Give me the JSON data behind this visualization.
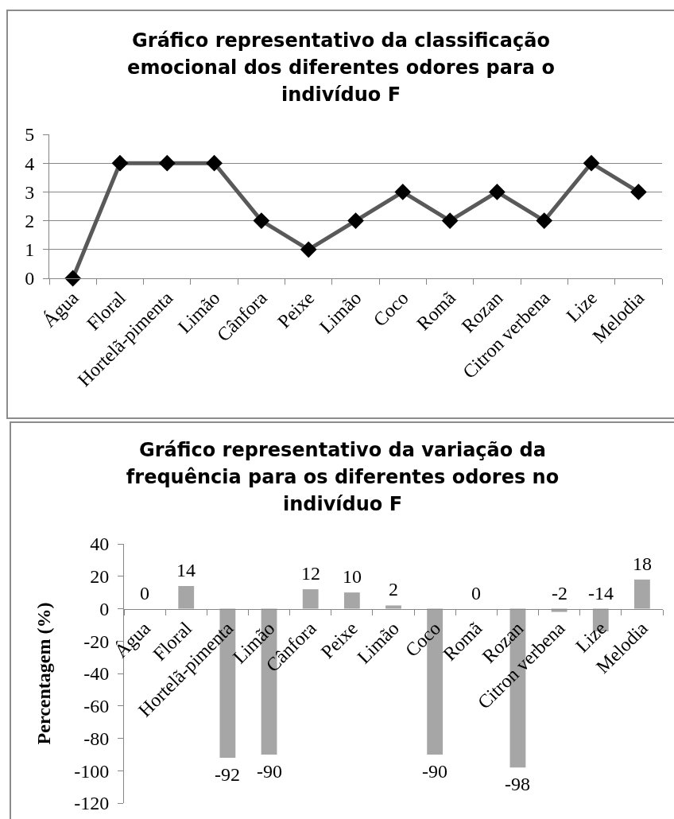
{
  "chart_data": [
    {
      "type": "line",
      "title": "Gráfico representativo da classificação emocional dos diferentes odores para o indivíduo F",
      "categories": [
        "Água",
        "Floral",
        "Hortelã-pimenta",
        "Limão",
        "Cânfora",
        "Peixe",
        "Limão",
        "Coco",
        "Romã",
        "Rozan",
        "Citron verbena",
        "Lize",
        "Melodia"
      ],
      "values": [
        0,
        4,
        4,
        4,
        2,
        1,
        2,
        3,
        2,
        3,
        2,
        4,
        3
      ],
      "color": "#595959",
      "colors": [
        "#000000",
        "#000000",
        "#000000",
        "#000000",
        "#000000",
        "#000000",
        "#000000",
        "#000000",
        "#000000",
        "#000000",
        "#000000",
        "#000000",
        "#000000"
      ],
      "marker": "diamond",
      "line_style": "solid",
      "ylim": [
        0,
        5
      ],
      "yticks": [
        0,
        1,
        2,
        3,
        4,
        5
      ],
      "grid": "y"
    },
    {
      "type": "bar",
      "title": "Gráfico representativo da variação da frequência para os diferentes odores no indivíduo F",
      "ylabel": "Percentagem (%)",
      "categories": [
        "Água",
        "Floral",
        "Hortelã-pimenta",
        "Limão",
        "Cânfora",
        "Peixe",
        "Limão",
        "Coco",
        "Romã",
        "Rozan",
        "Citron verbena",
        "Lize",
        "Melodia"
      ],
      "values": [
        0,
        14,
        -92,
        -90,
        12,
        10,
        2,
        -90,
        0,
        -98,
        -2,
        -14,
        18
      ],
      "color": "#a6a6a6",
      "data_labels": true,
      "ylim": [
        -120,
        40
      ],
      "yticks": [
        -120,
        -100,
        -80,
        -60,
        -40,
        -20,
        0,
        20,
        40
      ]
    }
  ]
}
